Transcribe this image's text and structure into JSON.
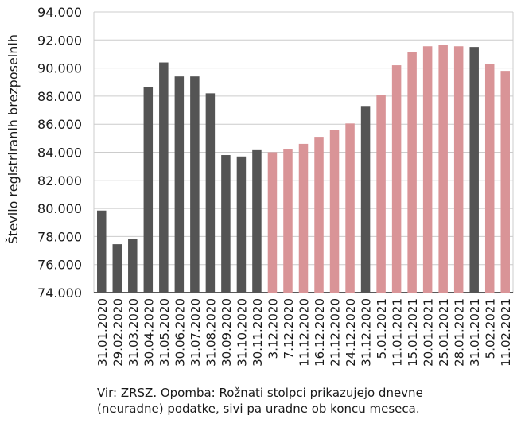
{
  "chart_data": {
    "type": "bar",
    "ylabel": "Število registriranih brezposelnih",
    "ylim": [
      74000,
      94000
    ],
    "yticks": [
      "74.000",
      "76.000",
      "78.000",
      "80.000",
      "82.000",
      "84.000",
      "86.000",
      "88.000",
      "90.000",
      "92.000",
      "94.000"
    ],
    "grid": true,
    "categories": [
      "31.01.2020",
      "29.02.2020",
      "31.03.2020",
      "30.04.2020",
      "31.05.2020",
      "30.06.2020",
      "31.07.2020",
      "31.08.2020",
      "30.09.2020",
      "31.10.2020",
      "30.11.2020",
      "3.12.2020",
      "7.12.2020",
      "11.12.2020",
      "16.12.2020",
      "21.12.2020",
      "24.12.2020",
      "31.12.2020",
      "5.01.2021",
      "11.01.2021",
      "15.01.2021",
      "20.01.2021",
      "25.01.2021",
      "28.01.2021",
      "31.01.2021",
      "5.02.2021",
      "11.02.2021"
    ],
    "values": [
      79850,
      77450,
      77850,
      88650,
      90400,
      89400,
      89400,
      88200,
      83800,
      83700,
      84150,
      84000,
      84250,
      84600,
      85100,
      85600,
      86050,
      87300,
      88100,
      90200,
      91150,
      91550,
      91650,
      91550,
      91500,
      90300,
      89800
    ],
    "bar_kind": [
      "month",
      "month",
      "month",
      "month",
      "month",
      "month",
      "month",
      "month",
      "month",
      "month",
      "month",
      "day",
      "day",
      "day",
      "day",
      "day",
      "day",
      "month",
      "day",
      "day",
      "day",
      "day",
      "day",
      "day",
      "month",
      "day",
      "day"
    ],
    "colors": {
      "month": "#545454",
      "day": "#d99497",
      "grid": "#cccccc",
      "axis": "#222222"
    }
  },
  "note": "Vir: ZRSZ. Opomba: Rožnati stolpci prikazujejo dnevne (neuradne) podatke, sivi pa uradne ob koncu meseca."
}
